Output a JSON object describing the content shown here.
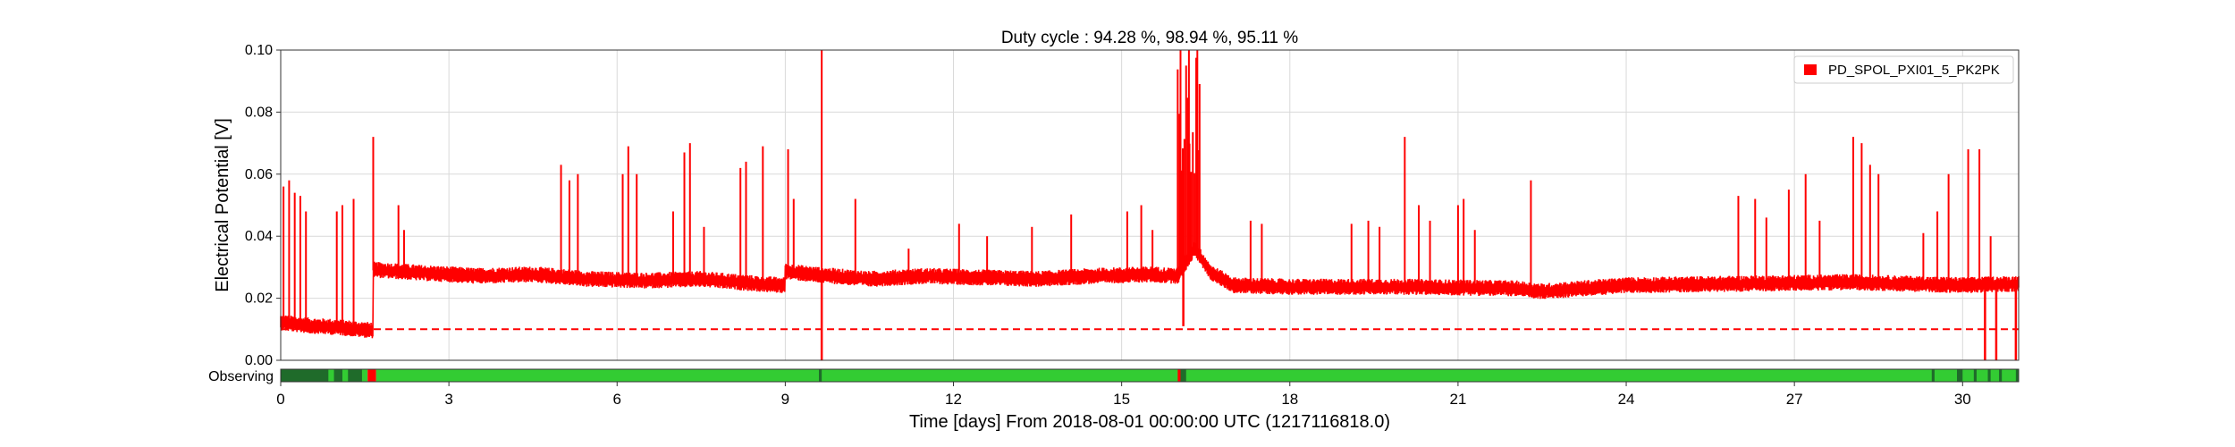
{
  "chart_data": {
    "type": "line",
    "title": "Duty cycle : 94.28 %, 98.94 %, 95.11 %",
    "xlabel": "Time [days] From 2018-08-01 00:00:00 UTC (1217116818.0)",
    "ylabel": "Electrical Potential [V]",
    "xlim": [
      0,
      31
    ],
    "ylim": [
      0,
      0.1
    ],
    "x_ticks": [
      "0",
      "3",
      "6",
      "9",
      "12",
      "15",
      "18",
      "21",
      "24",
      "27",
      "30"
    ],
    "x_tick_values": [
      0,
      3,
      6,
      9,
      12,
      15,
      18,
      21,
      24,
      27,
      30
    ],
    "y_ticks": [
      "0.00",
      "0.02",
      "0.04",
      "0.06",
      "0.08",
      "0.10"
    ],
    "y_tick_values": [
      0,
      0.02,
      0.04,
      0.06,
      0.08,
      0.1
    ],
    "grid": true,
    "legend": {
      "position": "top-right",
      "entries": [
        "PD_SPOL_PXI01_5_PK2PK"
      ]
    },
    "colors": {
      "series": "#ff0000",
      "observing": "#33cc33",
      "not_observing": "#1f6b2a"
    },
    "series": [
      {
        "name": "PD_SPOL_PXI01_5_PK2PK",
        "baseline": [
          [
            0,
            0.012
          ],
          [
            0.5,
            0.011
          ],
          [
            1.0,
            0.0105
          ],
          [
            1.6,
            0.0095
          ],
          [
            1.65,
            0.029
          ],
          [
            2.5,
            0.028
          ],
          [
            3.5,
            0.027
          ],
          [
            4.5,
            0.0275
          ],
          [
            5.5,
            0.026
          ],
          [
            6.5,
            0.0255
          ],
          [
            7.5,
            0.026
          ],
          [
            8.5,
            0.0245
          ],
          [
            8.95,
            0.024
          ],
          [
            9.0,
            0.0285
          ],
          [
            9.5,
            0.0275
          ],
          [
            10.5,
            0.026
          ],
          [
            11.5,
            0.027
          ],
          [
            12.5,
            0.0265
          ],
          [
            13.5,
            0.026
          ],
          [
            14.5,
            0.027
          ],
          [
            15.5,
            0.0275
          ],
          [
            16.0,
            0.027
          ],
          [
            16.3,
            0.036
          ],
          [
            16.6,
            0.028
          ],
          [
            17.0,
            0.024
          ],
          [
            18.0,
            0.0235
          ],
          [
            20.0,
            0.0235
          ],
          [
            22.0,
            0.023
          ],
          [
            22.5,
            0.022
          ],
          [
            24.0,
            0.024
          ],
          [
            26.0,
            0.0245
          ],
          [
            28.0,
            0.025
          ],
          [
            30.0,
            0.024
          ],
          [
            31.0,
            0.0245
          ]
        ],
        "spikes": [
          [
            0.05,
            0.056
          ],
          [
            0.15,
            0.058
          ],
          [
            0.25,
            0.054
          ],
          [
            0.35,
            0.053
          ],
          [
            0.45,
            0.048
          ],
          [
            1.0,
            0.048
          ],
          [
            1.1,
            0.05
          ],
          [
            1.3,
            0.052
          ],
          [
            1.65,
            0.072
          ],
          [
            2.1,
            0.05
          ],
          [
            2.2,
            0.042
          ],
          [
            5.0,
            0.063
          ],
          [
            5.15,
            0.058
          ],
          [
            5.3,
            0.06
          ],
          [
            6.1,
            0.06
          ],
          [
            6.2,
            0.069
          ],
          [
            6.35,
            0.06
          ],
          [
            7.0,
            0.048
          ],
          [
            7.2,
            0.067
          ],
          [
            7.3,
            0.07
          ],
          [
            7.55,
            0.043
          ],
          [
            8.2,
            0.062
          ],
          [
            8.3,
            0.064
          ],
          [
            8.6,
            0.069
          ],
          [
            9.05,
            0.068
          ],
          [
            9.15,
            0.052
          ],
          [
            9.65,
            0.1
          ],
          [
            10.25,
            0.052
          ],
          [
            11.2,
            0.036
          ],
          [
            12.1,
            0.044
          ],
          [
            12.6,
            0.04
          ],
          [
            13.4,
            0.043
          ],
          [
            14.1,
            0.047
          ],
          [
            15.1,
            0.048
          ],
          [
            15.35,
            0.05
          ],
          [
            15.55,
            0.042
          ],
          [
            16.05,
            0.1
          ],
          [
            16.2,
            0.1
          ],
          [
            16.35,
            0.1
          ],
          [
            17.3,
            0.045
          ],
          [
            17.5,
            0.044
          ],
          [
            19.1,
            0.044
          ],
          [
            19.4,
            0.045
          ],
          [
            19.6,
            0.043
          ],
          [
            20.05,
            0.072
          ],
          [
            20.3,
            0.05
          ],
          [
            20.5,
            0.045
          ],
          [
            21.0,
            0.05
          ],
          [
            21.1,
            0.052
          ],
          [
            21.3,
            0.042
          ],
          [
            22.3,
            0.058
          ],
          [
            26.0,
            0.053
          ],
          [
            26.3,
            0.052
          ],
          [
            26.5,
            0.046
          ],
          [
            26.9,
            0.055
          ],
          [
            27.2,
            0.06
          ],
          [
            27.45,
            0.045
          ],
          [
            28.05,
            0.072
          ],
          [
            28.2,
            0.07
          ],
          [
            28.35,
            0.063
          ],
          [
            28.5,
            0.06
          ],
          [
            29.3,
            0.041
          ],
          [
            29.55,
            0.048
          ],
          [
            29.75,
            0.06
          ],
          [
            30.1,
            0.068
          ],
          [
            30.3,
            0.068
          ],
          [
            30.5,
            0.04
          ]
        ],
        "dips": [
          [
            9.65,
            0.0
          ],
          [
            16.1,
            0.011
          ],
          [
            30.4,
            0.0
          ],
          [
            30.6,
            0.0
          ],
          [
            30.95,
            0.0
          ]
        ]
      }
    ],
    "threshold_line": {
      "value": 0.01,
      "style": "dashed"
    },
    "segments": {
      "label": "Observing",
      "observing": [
        [
          0,
          1.55
        ],
        [
          1.7,
          31
        ]
      ],
      "off_marks": [
        [
          0,
          0.85
        ],
        [
          0.95,
          1.1
        ],
        [
          1.2,
          1.45
        ],
        [
          9.6,
          9.65
        ],
        [
          16.05,
          16.15
        ],
        [
          29.45,
          29.5
        ],
        [
          29.9,
          30.0
        ],
        [
          30.2,
          30.25
        ],
        [
          30.45,
          30.5
        ],
        [
          30.65,
          30.7
        ],
        [
          30.95,
          31.0
        ]
      ],
      "red_marks": [
        [
          1.55,
          1.7
        ],
        [
          16.0,
          16.05
        ]
      ]
    }
  }
}
